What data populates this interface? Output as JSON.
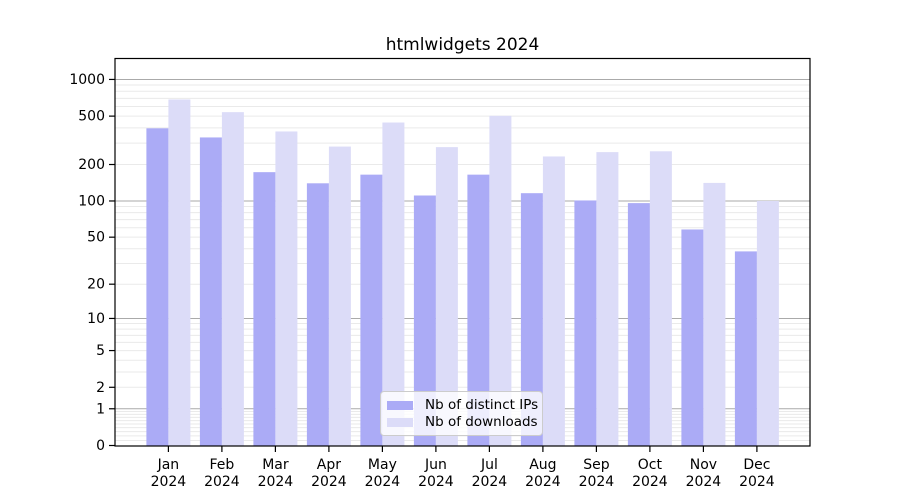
{
  "chart_data": {
    "type": "bar",
    "title": "htmlwidgets 2024",
    "categories": [
      "Jan",
      "Feb",
      "Mar",
      "Apr",
      "May",
      "Jun",
      "Jul",
      "Aug",
      "Sep",
      "Oct",
      "Nov",
      "Dec"
    ],
    "x_axis": {
      "year_label": "2024"
    },
    "series": [
      {
        "name": "Nb of distinct IPs",
        "color": "#ABABF6",
        "values": [
          397,
          334,
          173,
          140,
          165,
          111,
          165,
          116,
          101,
          96,
          58,
          38
        ]
      },
      {
        "name": "Nb of downloads",
        "color": "#DCDCF8",
        "values": [
          685,
          539,
          374,
          281,
          443,
          278,
          503,
          233,
          253,
          257,
          141,
          100
        ]
      }
    ],
    "y_axis": {
      "scale": "log10(value+1)",
      "tick_values": [
        1000,
        500,
        200,
        100,
        50,
        20,
        10,
        5,
        2,
        1,
        0
      ],
      "major_gridlines": [
        1,
        10,
        100,
        1000
      ],
      "minor_gridlines": [
        0.1,
        0.2,
        0.3,
        0.4,
        0.5,
        0.6,
        0.7,
        0.8,
        0.9,
        2,
        3,
        4,
        5,
        6,
        7,
        8,
        9,
        20,
        30,
        40,
        50,
        60,
        70,
        80,
        90,
        200,
        300,
        400,
        500,
        600,
        700,
        800,
        900
      ],
      "range": [
        0,
        1500
      ]
    },
    "legend": {
      "position": "lower center"
    },
    "colors": {
      "grid_major": "#aaaaaa",
      "grid_minor": "#eaeaea",
      "axis": "#000000",
      "background": "#ffffff",
      "text": "#000000"
    }
  }
}
